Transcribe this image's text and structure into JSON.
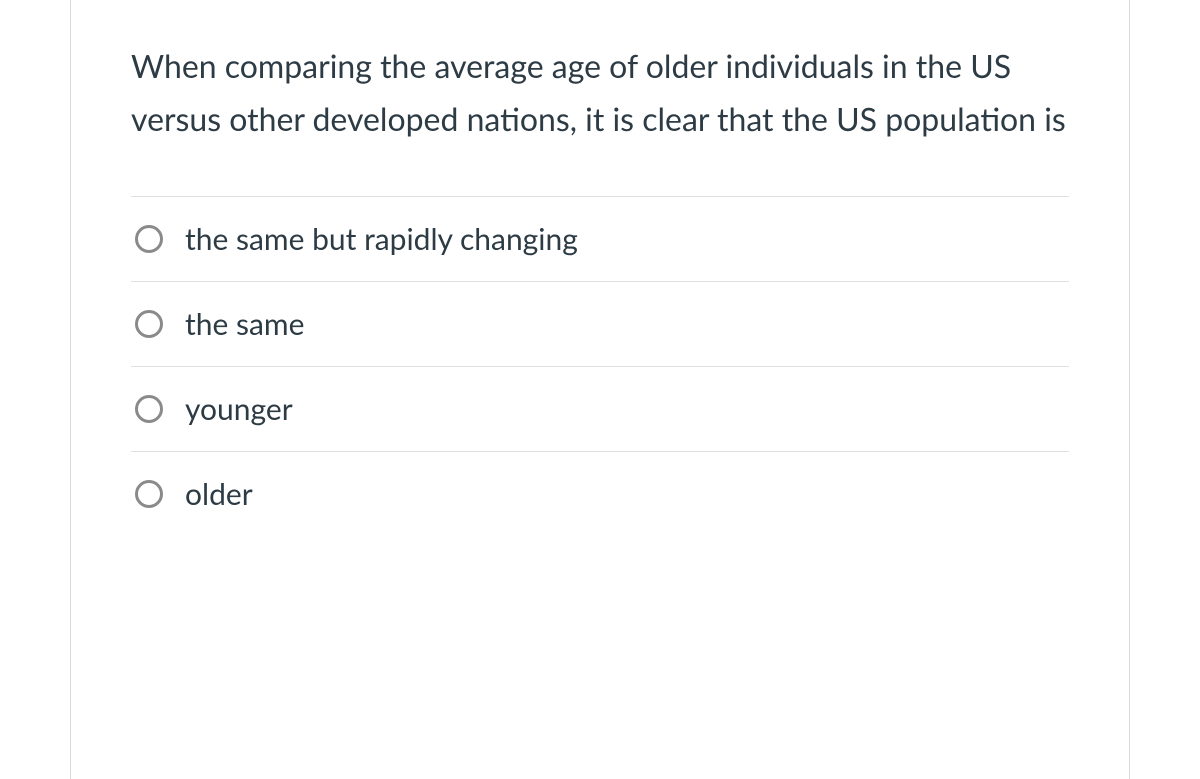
{
  "question": {
    "text": "When comparing the average age of older individuals in the US versus other developed nations, it is clear that the US population is"
  },
  "options": [
    {
      "label": "the same but rapidly changing"
    },
    {
      "label": "the same"
    },
    {
      "label": "younger"
    },
    {
      "label": "older"
    }
  ],
  "colors": {
    "text_primary": "#2d3b45",
    "border": "#d9d9d9",
    "row_border": "#e0e0e0",
    "radio_border": "#8a8a8a",
    "background": "#ffffff"
  }
}
